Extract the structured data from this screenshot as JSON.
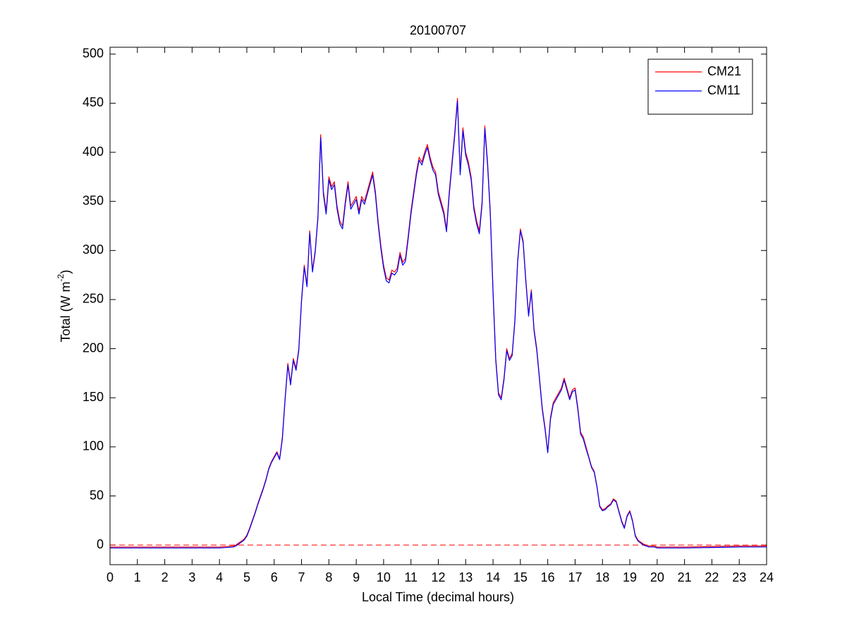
{
  "chart_data": {
    "type": "line",
    "title": "20100707",
    "x_label": "Local Time (decimal hours)",
    "y_label": {
      "text": "Total (W m",
      "superscript": "-2",
      "suffix": ")"
    },
    "xlim": [
      0,
      24
    ],
    "ylim": [
      -20,
      507
    ],
    "xticks": [
      0,
      1,
      2,
      3,
      4,
      5,
      6,
      7,
      8,
      9,
      10,
      11,
      12,
      13,
      14,
      15,
      16,
      17,
      18,
      19,
      20,
      21,
      22,
      23,
      24
    ],
    "yticks": [
      0,
      50,
      100,
      150,
      200,
      250,
      300,
      350,
      400,
      450,
      500
    ],
    "legend": "top-right",
    "reference_line": {
      "value": 0,
      "color": "#ff0000",
      "style": "dashed"
    },
    "x": [
      0,
      1,
      2,
      3,
      4,
      4.5,
      4.6,
      4.7,
      4.8,
      4.9,
      5.0,
      5.1,
      5.2,
      5.3,
      5.4,
      5.5,
      5.6,
      5.7,
      5.8,
      5.9,
      6.0,
      6.1,
      6.2,
      6.3,
      6.4,
      6.5,
      6.6,
      6.7,
      6.8,
      6.9,
      7.0,
      7.1,
      7.2,
      7.3,
      7.4,
      7.5,
      7.6,
      7.7,
      7.8,
      7.9,
      8.0,
      8.1,
      8.2,
      8.3,
      8.4,
      8.5,
      8.6,
      8.7,
      8.8,
      8.9,
      9.0,
      9.1,
      9.2,
      9.3,
      9.4,
      9.5,
      9.6,
      9.7,
      9.8,
      9.9,
      10.0,
      10.1,
      10.2,
      10.3,
      10.4,
      10.5,
      10.6,
      10.7,
      10.8,
      10.9,
      11.0,
      11.1,
      11.2,
      11.3,
      11.4,
      11.5,
      11.6,
      11.7,
      11.8,
      11.9,
      12.0,
      12.1,
      12.2,
      12.3,
      12.4,
      12.5,
      12.6,
      12.7,
      12.8,
      12.9,
      13.0,
      13.1,
      13.2,
      13.3,
      13.4,
      13.5,
      13.6,
      13.7,
      13.8,
      13.9,
      14.0,
      14.1,
      14.2,
      14.3,
      14.4,
      14.5,
      14.6,
      14.7,
      14.8,
      14.9,
      15.0,
      15.1,
      15.2,
      15.3,
      15.4,
      15.5,
      15.6,
      15.7,
      15.8,
      15.9,
      16.0,
      16.1,
      16.2,
      16.3,
      16.4,
      16.5,
      16.6,
      16.7,
      16.8,
      16.9,
      17.0,
      17.1,
      17.2,
      17.3,
      17.4,
      17.5,
      17.6,
      17.7,
      17.8,
      17.9,
      18.0,
      18.1,
      18.2,
      18.3,
      18.4,
      18.5,
      18.6,
      18.7,
      18.8,
      18.9,
      19.0,
      19.1,
      19.2,
      19.3,
      19.4,
      19.5,
      19.6,
      19.7,
      19.8,
      19.9,
      20.0,
      21,
      22,
      23,
      24
    ],
    "series": [
      {
        "name": "CM21",
        "color": "#ff0000",
        "values": [
          -2,
          -2,
          -2,
          -2,
          -2,
          -1,
          0,
          2,
          4,
          6,
          10,
          17,
          25,
          33,
          42,
          50,
          58,
          67,
          78,
          85,
          90,
          95,
          88,
          110,
          150,
          185,
          165,
          190,
          180,
          200,
          250,
          285,
          265,
          320,
          280,
          300,
          335,
          418,
          360,
          340,
          375,
          365,
          370,
          345,
          330,
          325,
          350,
          370,
          345,
          350,
          355,
          340,
          355,
          350,
          360,
          370,
          380,
          360,
          330,
          305,
          285,
          272,
          270,
          280,
          278,
          282,
          298,
          288,
          292,
          315,
          340,
          360,
          380,
          395,
          390,
          400,
          408,
          395,
          385,
          380,
          360,
          350,
          340,
          322,
          360,
          390,
          420,
          455,
          380,
          425,
          400,
          390,
          375,
          345,
          330,
          320,
          350,
          427,
          390,
          340,
          260,
          190,
          155,
          150,
          170,
          200,
          190,
          195,
          230,
          290,
          322,
          310,
          270,
          235,
          260,
          220,
          200,
          170,
          140,
          120,
          95,
          130,
          145,
          150,
          155,
          160,
          170,
          160,
          150,
          158,
          160,
          140,
          115,
          110,
          100,
          90,
          80,
          75,
          60,
          40,
          36,
          37,
          40,
          42,
          47,
          45,
          35,
          25,
          18,
          30,
          35,
          25,
          10,
          5,
          3,
          1,
          0,
          -1,
          -1,
          -1,
          -2,
          -2,
          -1.5,
          -1,
          -1
        ]
      },
      {
        "name": "CM11",
        "color": "#0000ff",
        "values": [
          -3,
          -3,
          -3,
          -3,
          -3,
          -2,
          -1,
          1,
          3,
          5,
          9,
          16,
          24,
          32,
          41,
          49,
          57,
          66,
          77,
          84,
          89,
          94,
          87,
          108,
          148,
          183,
          163,
          188,
          178,
          198,
          248,
          283,
          263,
          318,
          278,
          298,
          333,
          415,
          357,
          337,
          372,
          362,
          367,
          342,
          327,
          322,
          347,
          367,
          342,
          347,
          352,
          337,
          352,
          347,
          357,
          367,
          377,
          357,
          327,
          302,
          282,
          269,
          267,
          277,
          275,
          279,
          295,
          285,
          289,
          312,
          337,
          357,
          377,
          392,
          387,
          397,
          405,
          392,
          382,
          377,
          357,
          347,
          337,
          319,
          357,
          387,
          417,
          452,
          377,
          422,
          397,
          387,
          372,
          342,
          327,
          317,
          347,
          424,
          387,
          337,
          257,
          188,
          153,
          148,
          168,
          198,
          188,
          193,
          228,
          288,
          320,
          308,
          268,
          233,
          258,
          218,
          198,
          168,
          138,
          118,
          94,
          128,
          143,
          148,
          153,
          158,
          168,
          158,
          148,
          156,
          158,
          138,
          113,
          108,
          98,
          89,
          79,
          74,
          59,
          39,
          35,
          36,
          39,
          41,
          46,
          44,
          34,
          24,
          17,
          29,
          34,
          24,
          9,
          4,
          2,
          0,
          -1,
          -2,
          -2,
          -2,
          -3,
          -3,
          -2.5,
          -2,
          -2
        ]
      }
    ]
  }
}
